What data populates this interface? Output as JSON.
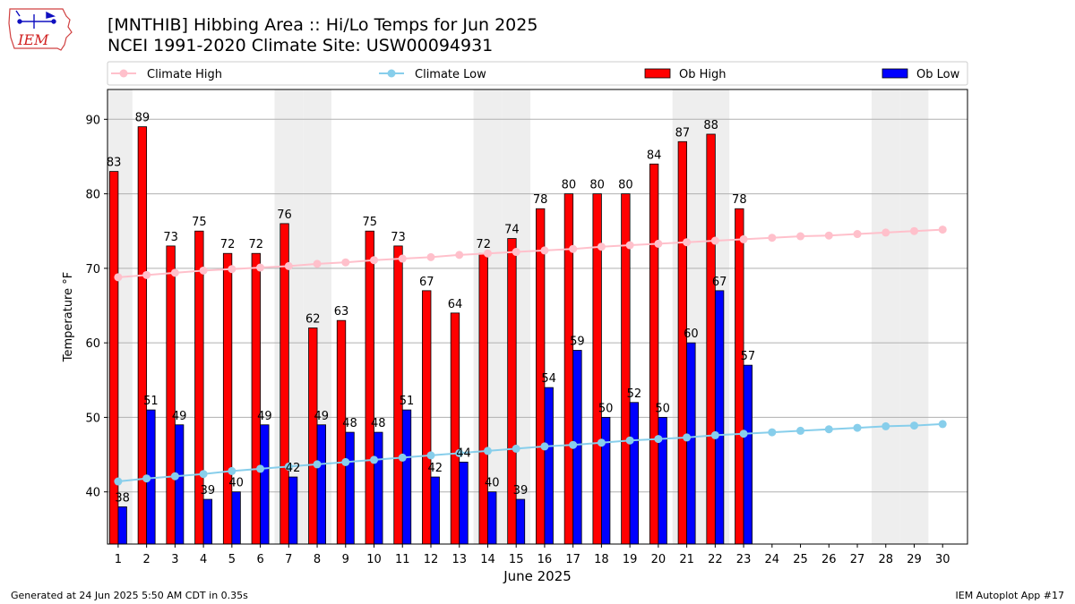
{
  "header": {
    "title_line1": "[MNTHIB] Hibbing Area :: Hi/Lo Temps for Jun 2025",
    "title_line2": "NCEI 1991-2020 Climate Site: USW00094931",
    "logo_text": "IEM"
  },
  "footer": {
    "generated": "Generated at 24 Jun 2025 5:50 AM CDT in 0.35s",
    "app": "IEM Autoplot App #17"
  },
  "colors": {
    "ob_high": "#ff0000",
    "ob_low": "#0000ff",
    "climate_high": "#ffc0cb",
    "climate_low": "#87ceeb",
    "weekend_shade": "#eeeeee",
    "grid": "#b0b0b0"
  },
  "chart_data": {
    "type": "bar",
    "xlabel": "June 2025",
    "ylabel": "Temperature °F",
    "ylim": [
      33,
      94
    ],
    "yticks": [
      40,
      50,
      60,
      70,
      80,
      90
    ],
    "grid": "horizontal",
    "legend_position": "top",
    "days": [
      1,
      2,
      3,
      4,
      5,
      6,
      7,
      8,
      9,
      10,
      11,
      12,
      13,
      14,
      15,
      16,
      17,
      18,
      19,
      20,
      21,
      22,
      23,
      24,
      25,
      26,
      27,
      28,
      29,
      30
    ],
    "weekend_days": [
      1,
      7,
      8,
      14,
      15,
      21,
      22,
      28,
      29
    ],
    "series": [
      {
        "name": "Climate High",
        "kind": "line",
        "values": [
          68.8,
          69.1,
          69.4,
          69.7,
          69.9,
          70.1,
          70.3,
          70.6,
          70.8,
          71.1,
          71.3,
          71.5,
          71.8,
          72.0,
          72.2,
          72.4,
          72.6,
          72.9,
          73.1,
          73.3,
          73.5,
          73.7,
          73.9,
          74.1,
          74.3,
          74.4,
          74.6,
          74.8,
          75.0,
          75.2
        ]
      },
      {
        "name": "Climate Low",
        "kind": "line",
        "values": [
          41.4,
          41.8,
          42.1,
          42.4,
          42.8,
          43.1,
          43.4,
          43.7,
          44.0,
          44.3,
          44.6,
          44.9,
          45.2,
          45.5,
          45.8,
          46.1,
          46.3,
          46.6,
          46.9,
          47.1,
          47.3,
          47.6,
          47.8,
          48.0,
          48.2,
          48.4,
          48.6,
          48.8,
          48.9,
          49.1
        ]
      },
      {
        "name": "Ob High",
        "kind": "bar",
        "values": [
          83,
          89,
          73,
          75,
          72,
          72,
          76,
          62,
          63,
          75,
          73,
          67,
          64,
          72,
          74,
          78,
          80,
          80,
          80,
          84,
          87,
          88,
          78
        ]
      },
      {
        "name": "Ob Low",
        "kind": "bar",
        "values": [
          38,
          51,
          49,
          39,
          40,
          49,
          42,
          49,
          48,
          48,
          51,
          42,
          44,
          40,
          39,
          54,
          59,
          50,
          52,
          50,
          60,
          67,
          57
        ]
      }
    ]
  }
}
